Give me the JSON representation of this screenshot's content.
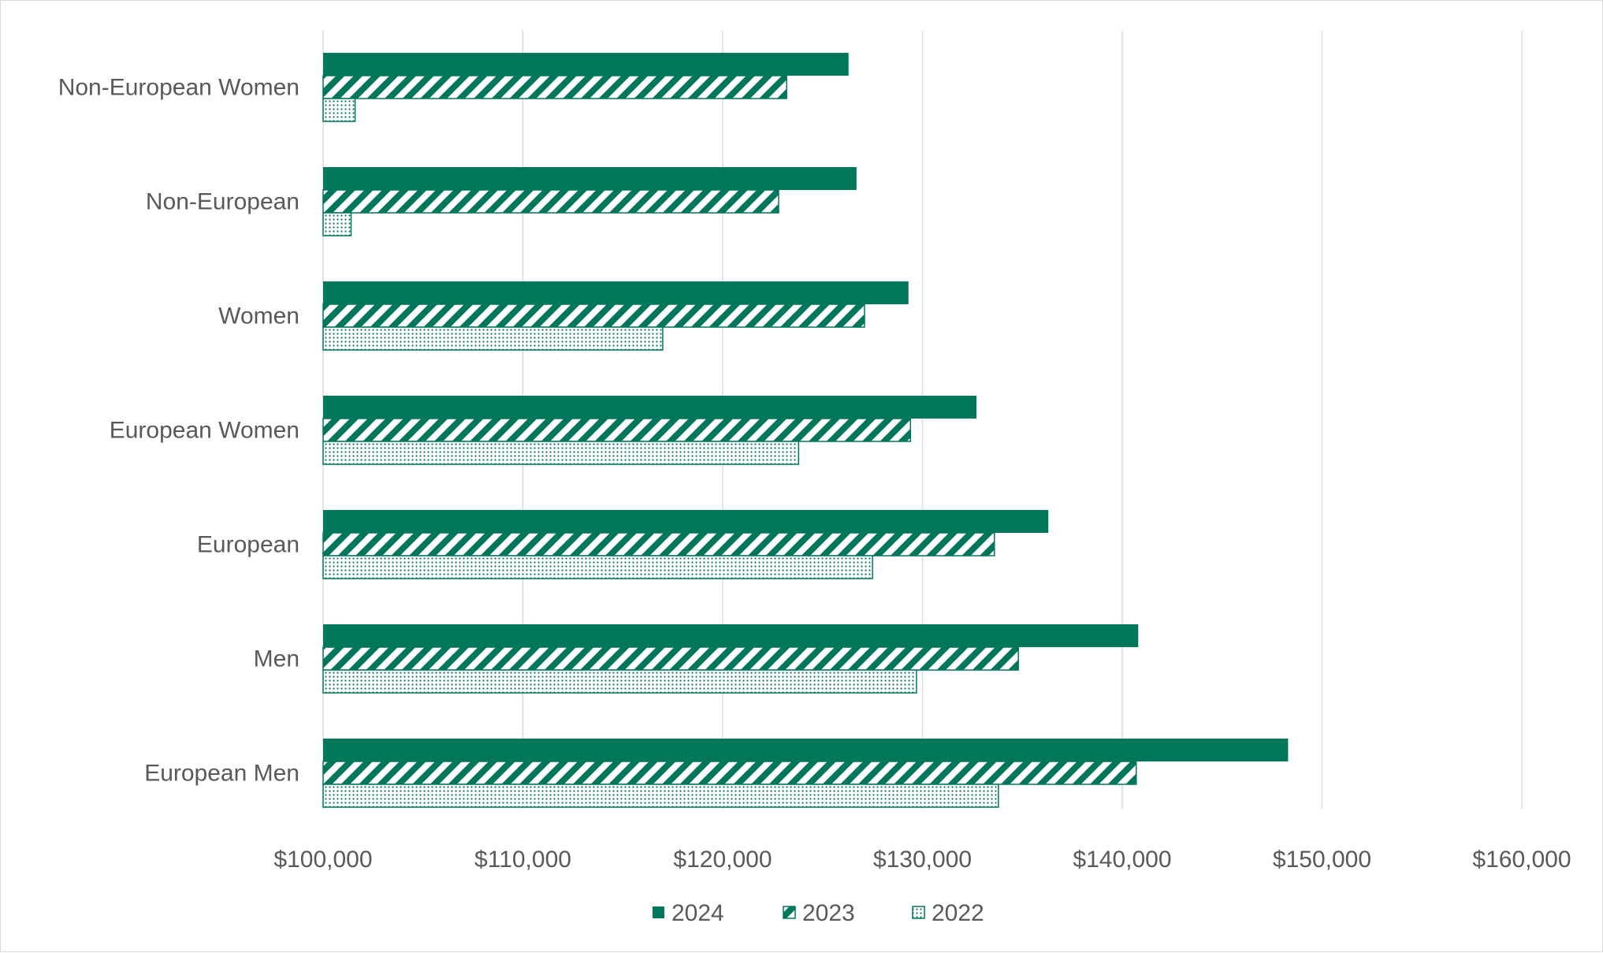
{
  "chart_data": {
    "type": "bar",
    "orientation": "horizontal",
    "categories": [
      "Non-European Women",
      "Non-European",
      "Women",
      "European Women",
      "European",
      "Men",
      "European Men"
    ],
    "series": [
      {
        "name": "2024",
        "values": [
          126300,
          126700,
          129300,
          132700,
          136300,
          140800,
          148300
        ],
        "pattern": "solid"
      },
      {
        "name": "2023",
        "values": [
          123200,
          122800,
          127100,
          129400,
          133600,
          134800,
          140700
        ],
        "pattern": "diagonal-stripes"
      },
      {
        "name": "2022",
        "values": [
          101600,
          101400,
          117000,
          123800,
          127500,
          129700,
          133800
        ],
        "pattern": "dots"
      }
    ],
    "xlim": [
      100000,
      160000
    ],
    "xticks": [
      100000,
      110000,
      120000,
      130000,
      140000,
      150000,
      160000
    ],
    "tick_labels": [
      "$100,000",
      "$110,000",
      "$120,000",
      "$130,000",
      "$140,000",
      "$150,000",
      "$160,000"
    ],
    "grid": "vertical",
    "legend_position": "bottom",
    "color": "#00775a",
    "title": "",
    "xlabel": "",
    "ylabel": ""
  }
}
